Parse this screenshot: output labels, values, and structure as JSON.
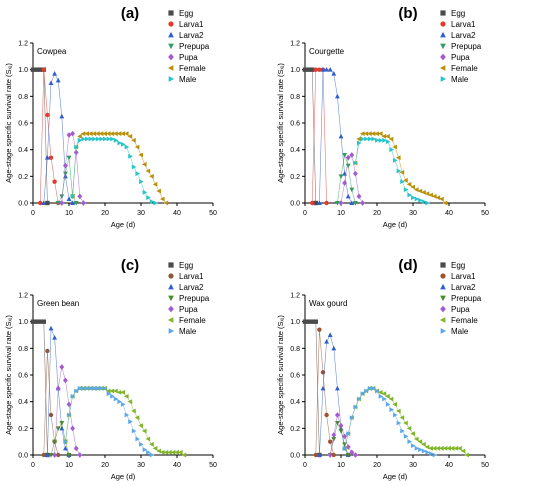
{
  "chart_data": [
    {
      "panel_label": "(a)",
      "title": "Cowpea",
      "type": "scatter",
      "xlabel": "Age (d)",
      "ylabel": "Age-stage specific survival rate (Sₓⱼ)",
      "xlim": [
        0,
        50
      ],
      "ylim": [
        0,
        1.2
      ],
      "xticks": [
        "0",
        "10",
        "20",
        "30",
        "40",
        "50"
      ],
      "yticks": [
        "0.0",
        "0.2",
        "0.4",
        "0.6",
        "0.8",
        "1.0",
        "1.2"
      ],
      "legend_position": "top-right",
      "series": [
        {
          "name": "Egg",
          "color": "#4a4a4a",
          "marker": "square",
          "x": [
            0,
            1,
            2,
            3,
            4
          ],
          "y": [
            1.0,
            1.0,
            1.0,
            1.0,
            0.0
          ]
        },
        {
          "name": "Larva1",
          "color": "#e23a2e",
          "marker": "circle",
          "x": [
            2,
            3,
            4,
            5,
            6,
            7
          ],
          "y": [
            0.0,
            1.0,
            0.66,
            0.34,
            0.16,
            0.0
          ]
        },
        {
          "name": "Larva2",
          "color": "#2f5fcf",
          "marker": "triangle-up",
          "x": [
            3,
            4,
            5,
            6,
            7,
            8,
            9,
            10,
            11
          ],
          "y": [
            0.0,
            0.34,
            0.9,
            0.97,
            0.92,
            0.65,
            0.2,
            0.03,
            0.0
          ]
        },
        {
          "name": "Prepupa",
          "color": "#2f9e5a",
          "marker": "triangle-down",
          "x": [
            7,
            8,
            9,
            10,
            11,
            12
          ],
          "y": [
            0.0,
            0.05,
            0.22,
            0.34,
            0.05,
            0.0
          ]
        },
        {
          "name": "Pupa",
          "color": "#a45bd0",
          "marker": "diamond",
          "x": [
            8,
            9,
            10,
            11,
            12,
            13,
            14
          ],
          "y": [
            0.0,
            0.28,
            0.51,
            0.52,
            0.38,
            0.05,
            0.0
          ]
        },
        {
          "name": "Female",
          "color": "#b8900a",
          "marker": "triangle-left",
          "x": [
            11,
            12,
            13,
            14,
            15,
            16,
            17,
            18,
            19,
            20,
            21,
            22,
            23,
            24,
            25,
            26,
            27,
            28,
            29,
            30,
            31,
            32,
            33,
            34,
            35,
            36,
            37
          ],
          "y": [
            0.05,
            0.42,
            0.5,
            0.52,
            0.52,
            0.52,
            0.52,
            0.52,
            0.52,
            0.52,
            0.52,
            0.52,
            0.52,
            0.52,
            0.52,
            0.52,
            0.5,
            0.47,
            0.42,
            0.36,
            0.29,
            0.24,
            0.2,
            0.14,
            0.09,
            0.03,
            0.0
          ]
        },
        {
          "name": "Male",
          "color": "#25c4c8",
          "marker": "triangle-right",
          "x": [
            11,
            12,
            13,
            14,
            15,
            16,
            17,
            18,
            19,
            20,
            21,
            22,
            23,
            24,
            25,
            26,
            27,
            28,
            29,
            30,
            31,
            32,
            33,
            34
          ],
          "y": [
            0.05,
            0.42,
            0.47,
            0.48,
            0.48,
            0.48,
            0.48,
            0.48,
            0.48,
            0.48,
            0.48,
            0.48,
            0.47,
            0.45,
            0.44,
            0.42,
            0.35,
            0.27,
            0.22,
            0.16,
            0.08,
            0.04,
            0.01,
            0.0
          ]
        }
      ]
    },
    {
      "panel_label": "(b)",
      "title": "Courgette",
      "type": "scatter",
      "xlabel": "Age (d)",
      "ylabel": "Age-stage specific survival rate (Sₓⱼ)",
      "xlim": [
        0,
        50
      ],
      "ylim": [
        0,
        1.2
      ],
      "xticks": [
        "0",
        "10",
        "20",
        "30",
        "40",
        "50"
      ],
      "yticks": [
        "0.0",
        "0.2",
        "0.4",
        "0.6",
        "0.8",
        "1.0",
        "1.2"
      ],
      "legend_position": "top-right",
      "series": [
        {
          "name": "Egg",
          "color": "#4a4a4a",
          "marker": "square",
          "x": [
            0,
            1,
            2,
            3
          ],
          "y": [
            1.0,
            1.0,
            1.0,
            0.0
          ]
        },
        {
          "name": "Larva1",
          "color": "#e23a2e",
          "marker": "circle",
          "x": [
            2,
            3,
            4,
            5,
            6
          ],
          "y": [
            0.0,
            1.0,
            1.0,
            1.0,
            0.0
          ]
        },
        {
          "name": "Larva2",
          "color": "#2f5fcf",
          "marker": "triangle-up",
          "x": [
            4,
            5,
            6,
            7,
            8,
            9,
            10,
            11,
            12,
            13
          ],
          "y": [
            0.0,
            1.0,
            1.0,
            1.0,
            0.97,
            0.8,
            0.5,
            0.22,
            0.05,
            0.0
          ]
        },
        {
          "name": "Prepupa",
          "color": "#2f9e5a",
          "marker": "triangle-down",
          "x": [
            9,
            10,
            11,
            12,
            13,
            14
          ],
          "y": [
            0.0,
            0.2,
            0.36,
            0.28,
            0.1,
            0.0
          ]
        },
        {
          "name": "Pupa",
          "color": "#a45bd0",
          "marker": "diamond",
          "x": [
            10,
            11,
            12,
            13,
            14,
            15,
            16
          ],
          "y": [
            0.0,
            0.15,
            0.34,
            0.36,
            0.22,
            0.05,
            0.0
          ]
        },
        {
          "name": "Female",
          "color": "#b8900a",
          "marker": "triangle-left",
          "x": [
            14,
            15,
            16,
            17,
            18,
            19,
            20,
            21,
            22,
            23,
            24,
            25,
            26,
            27,
            28,
            29,
            30,
            31,
            32,
            33,
            34,
            35,
            36,
            37,
            38,
            39
          ],
          "y": [
            0.3,
            0.48,
            0.52,
            0.52,
            0.52,
            0.52,
            0.52,
            0.52,
            0.5,
            0.5,
            0.48,
            0.42,
            0.34,
            0.23,
            0.17,
            0.14,
            0.12,
            0.1,
            0.09,
            0.08,
            0.07,
            0.06,
            0.05,
            0.04,
            0.03,
            0.0
          ]
        },
        {
          "name": "Male",
          "color": "#25c4c8",
          "marker": "triangle-right",
          "x": [
            14,
            15,
            16,
            17,
            18,
            19,
            20,
            21,
            22,
            23,
            24,
            25,
            26,
            27,
            28,
            29,
            30,
            31,
            32,
            33,
            34
          ],
          "y": [
            0.3,
            0.45,
            0.48,
            0.48,
            0.48,
            0.48,
            0.47,
            0.47,
            0.47,
            0.46,
            0.4,
            0.32,
            0.24,
            0.16,
            0.1,
            0.06,
            0.04,
            0.03,
            0.02,
            0.01,
            0.0
          ]
        }
      ]
    },
    {
      "panel_label": "(c)",
      "title": "Green bean",
      "type": "scatter",
      "xlabel": "Age (d)",
      "ylabel": "Age-stage specific survival rate (Sₓⱼ)",
      "xlim": [
        0,
        50
      ],
      "ylim": [
        0,
        1.2
      ],
      "xticks": [
        "0",
        "10",
        "20",
        "30",
        "40",
        "50"
      ],
      "yticks": [
        "0.0",
        "0.2",
        "0.4",
        "0.6",
        "0.8",
        "1.0",
        "1.2"
      ],
      "legend_position": "top-right",
      "series": [
        {
          "name": "Egg",
          "color": "#4a4a4a",
          "marker": "square",
          "x": [
            0,
            1,
            2,
            3,
            4
          ],
          "y": [
            1.0,
            1.0,
            1.0,
            1.0,
            0.0
          ]
        },
        {
          "name": "Larva1",
          "color": "#8a5a3a",
          "marker": "circle",
          "x": [
            3,
            4,
            5,
            6,
            7
          ],
          "y": [
            0.0,
            0.78,
            0.3,
            0.1,
            0.0
          ]
        },
        {
          "name": "Larva2",
          "color": "#2f5fcf",
          "marker": "triangle-up",
          "x": [
            4,
            5,
            6,
            7,
            8,
            9,
            10
          ],
          "y": [
            0.0,
            0.95,
            0.88,
            0.5,
            0.2,
            0.05,
            0.0
          ]
        },
        {
          "name": "Prepupa",
          "color": "#4a8a2f",
          "marker": "triangle-down",
          "x": [
            5,
            6,
            7,
            8,
            9,
            10
          ],
          "y": [
            0.0,
            0.1,
            0.2,
            0.24,
            0.1,
            0.0
          ]
        },
        {
          "name": "Pupa",
          "color": "#a45bd0",
          "marker": "diamond",
          "x": [
            6,
            7,
            8,
            9,
            10,
            11,
            12,
            13
          ],
          "y": [
            0.0,
            0.5,
            0.66,
            0.56,
            0.38,
            0.2,
            0.05,
            0.0
          ]
        },
        {
          "name": "Female",
          "color": "#7fb528",
          "marker": "triangle-left",
          "x": [
            9,
            10,
            11,
            12,
            13,
            14,
            15,
            16,
            17,
            18,
            19,
            20,
            21,
            22,
            23,
            24,
            25,
            26,
            27,
            28,
            29,
            30,
            31,
            32,
            33,
            34,
            35,
            36,
            37,
            38,
            39,
            40,
            41,
            42
          ],
          "y": [
            0.1,
            0.3,
            0.44,
            0.48,
            0.5,
            0.5,
            0.5,
            0.5,
            0.5,
            0.5,
            0.5,
            0.5,
            0.48,
            0.48,
            0.48,
            0.47,
            0.47,
            0.44,
            0.4,
            0.33,
            0.28,
            0.22,
            0.18,
            0.12,
            0.08,
            0.05,
            0.03,
            0.02,
            0.02,
            0.02,
            0.02,
            0.02,
            0.02,
            0.0
          ]
        },
        {
          "name": "Male",
          "color": "#5ba8e8",
          "marker": "triangle-right",
          "x": [
            9,
            10,
            11,
            12,
            13,
            14,
            15,
            16,
            17,
            18,
            19,
            20,
            21,
            22,
            23,
            24,
            25,
            26,
            27,
            28,
            29,
            30,
            31,
            32,
            33
          ],
          "y": [
            0.1,
            0.3,
            0.44,
            0.48,
            0.5,
            0.5,
            0.5,
            0.5,
            0.5,
            0.5,
            0.5,
            0.5,
            0.46,
            0.44,
            0.42,
            0.4,
            0.38,
            0.3,
            0.25,
            0.18,
            0.12,
            0.08,
            0.04,
            0.02,
            0.0
          ]
        }
      ]
    },
    {
      "panel_label": "(d)",
      "title": "Wax gourd",
      "type": "scatter",
      "xlabel": "Age (d)",
      "ylabel": "Age-stage specific survival rate (Sₓⱼ)",
      "xlim": [
        0,
        50
      ],
      "ylim": [
        0,
        1.2
      ],
      "xticks": [
        "0",
        "10",
        "20",
        "30",
        "40",
        "50"
      ],
      "yticks": [
        "0.0",
        "0.2",
        "0.4",
        "0.6",
        "0.8",
        "1.0",
        "1.2"
      ],
      "legend_position": "top-right",
      "series": [
        {
          "name": "Egg",
          "color": "#4a4a4a",
          "marker": "square",
          "x": [
            0,
            1,
            2,
            3,
            4
          ],
          "y": [
            1.0,
            1.0,
            1.0,
            1.0,
            0.0
          ]
        },
        {
          "name": "Larva1",
          "color": "#a0522d",
          "marker": "circle",
          "x": [
            3,
            4,
            5,
            6,
            7,
            8
          ],
          "y": [
            0.0,
            0.94,
            0.62,
            0.3,
            0.1,
            0.0
          ]
        },
        {
          "name": "Larva2",
          "color": "#2f5fcf",
          "marker": "triangle-up",
          "x": [
            4,
            5,
            6,
            7,
            8,
            9,
            10,
            11,
            12
          ],
          "y": [
            0.0,
            0.5,
            0.85,
            0.9,
            0.8,
            0.5,
            0.2,
            0.05,
            0.0
          ]
        },
        {
          "name": "Prepupa",
          "color": "#4a8a2f",
          "marker": "triangle-down",
          "x": [
            7,
            8,
            9,
            10,
            11,
            12
          ],
          "y": [
            0.0,
            0.12,
            0.24,
            0.18,
            0.08,
            0.0
          ]
        },
        {
          "name": "Pupa",
          "color": "#a45bd0",
          "marker": "diamond",
          "x": [
            7,
            8,
            9,
            10,
            11,
            12,
            13,
            14
          ],
          "y": [
            0.0,
            0.15,
            0.3,
            0.22,
            0.14,
            0.06,
            0.02,
            0.0
          ]
        },
        {
          "name": "Female",
          "color": "#7fb528",
          "marker": "triangle-left",
          "x": [
            11,
            12,
            13,
            14,
            15,
            16,
            17,
            18,
            19,
            20,
            21,
            22,
            23,
            24,
            25,
            26,
            27,
            28,
            29,
            30,
            31,
            32,
            33,
            34,
            35,
            36,
            37,
            38,
            39,
            40,
            41,
            42,
            43,
            44,
            45
          ],
          "y": [
            0.05,
            0.16,
            0.28,
            0.36,
            0.42,
            0.46,
            0.48,
            0.5,
            0.5,
            0.48,
            0.47,
            0.46,
            0.44,
            0.42,
            0.38,
            0.33,
            0.28,
            0.24,
            0.2,
            0.16,
            0.12,
            0.1,
            0.08,
            0.06,
            0.05,
            0.05,
            0.05,
            0.05,
            0.05,
            0.05,
            0.05,
            0.05,
            0.05,
            0.03,
            0.0
          ]
        },
        {
          "name": "Male",
          "color": "#5ba8e8",
          "marker": "triangle-right",
          "x": [
            11,
            12,
            13,
            14,
            15,
            16,
            17,
            18,
            19,
            20,
            21,
            22,
            23,
            24,
            25,
            26,
            27,
            28,
            29,
            30,
            31,
            32,
            33,
            34,
            35,
            36
          ],
          "y": [
            0.05,
            0.16,
            0.28,
            0.36,
            0.42,
            0.46,
            0.48,
            0.5,
            0.5,
            0.48,
            0.44,
            0.42,
            0.38,
            0.34,
            0.3,
            0.24,
            0.18,
            0.14,
            0.1,
            0.07,
            0.05,
            0.04,
            0.03,
            0.02,
            0.01,
            0.0
          ]
        }
      ]
    }
  ]
}
